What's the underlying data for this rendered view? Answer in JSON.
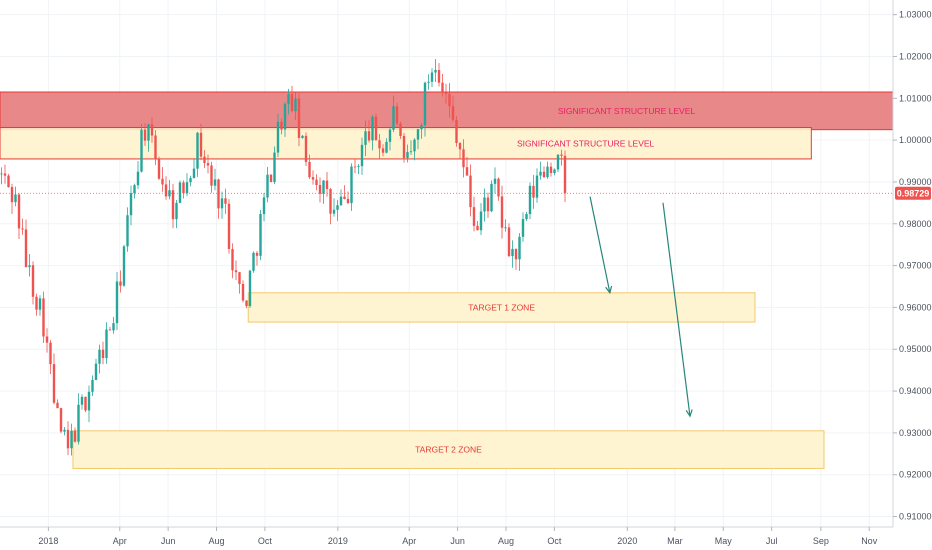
{
  "colors": {
    "up": "#26a69a",
    "down": "#ef5350",
    "resistance_fill": "#e57373",
    "resistance_border": "#e53935",
    "support_fill": "#fff3cd",
    "support_border": "#f2c96b",
    "band_label": "#e91e63",
    "target_label": "#e53935",
    "arrow": "#26867a",
    "price_tag": "#ef5350"
  },
  "chart_data": {
    "type": "candlestick",
    "y_axis": {
      "ticks": [
        "1.03000",
        "1.02000",
        "1.01000",
        "1.00000",
        "0.99000",
        "0.98000",
        "0.97000",
        "0.96000",
        "0.95000",
        "0.94000",
        "0.93000",
        "0.92000",
        "0.91000"
      ],
      "range": [
        0.9075,
        1.0335
      ],
      "position": "right"
    },
    "x_axis": {
      "ticks": [
        "2018",
        "Apr",
        "Jun",
        "Aug",
        "Oct",
        "2019",
        "Apr",
        "Jun",
        "Aug",
        "Oct",
        "2020",
        "Mar",
        "May",
        "Jul",
        "Sep",
        "Nov"
      ],
      "range": [
        "2017-11-01",
        "2020-12-01"
      ]
    },
    "last_price": "0.98729",
    "price_path": [
      {
        "d": "2017-11-01",
        "v": 0.992
      },
      {
        "d": "2017-11-20",
        "v": 0.986
      },
      {
        "d": "2017-12-05",
        "v": 0.97
      },
      {
        "d": "2017-12-25",
        "v": 0.958
      },
      {
        "d": "2018-01-10",
        "v": 0.935
      },
      {
        "d": "2018-01-25",
        "v": 0.925
      },
      {
        "d": "2018-02-10",
        "v": 0.935
      },
      {
        "d": "2018-03-01",
        "v": 0.945
      },
      {
        "d": "2018-03-25",
        "v": 0.958
      },
      {
        "d": "2018-04-15",
        "v": 0.985
      },
      {
        "d": "2018-05-01",
        "v": 1.004
      },
      {
        "d": "2018-05-20",
        "v": 0.993
      },
      {
        "d": "2018-06-10",
        "v": 0.983
      },
      {
        "d": "2018-06-25",
        "v": 0.992
      },
      {
        "d": "2018-07-10",
        "v": 1.0
      },
      {
        "d": "2018-07-25",
        "v": 0.99
      },
      {
        "d": "2018-08-10",
        "v": 0.985
      },
      {
        "d": "2018-08-25",
        "v": 0.968
      },
      {
        "d": "2018-09-05",
        "v": 0.96
      },
      {
        "d": "2018-09-20",
        "v": 0.975
      },
      {
        "d": "2018-10-05",
        "v": 0.99
      },
      {
        "d": "2018-10-20",
        "v": 1.005
      },
      {
        "d": "2018-11-05",
        "v": 1.01
      },
      {
        "d": "2018-11-20",
        "v": 0.995
      },
      {
        "d": "2018-12-10",
        "v": 0.99
      },
      {
        "d": "2018-12-25",
        "v": 0.982
      },
      {
        "d": "2019-01-10",
        "v": 0.985
      },
      {
        "d": "2019-01-25",
        "v": 0.995
      },
      {
        "d": "2019-02-10",
        "v": 1.003
      },
      {
        "d": "2019-02-28",
        "v": 0.998
      },
      {
        "d": "2019-03-15",
        "v": 1.008
      },
      {
        "d": "2019-03-25",
        "v": 0.992
      },
      {
        "d": "2019-04-10",
        "v": 1.0
      },
      {
        "d": "2019-04-25",
        "v": 1.015
      },
      {
        "d": "2019-05-05",
        "v": 1.02
      },
      {
        "d": "2019-05-20",
        "v": 1.008
      },
      {
        "d": "2019-06-01",
        "v": 1.002
      },
      {
        "d": "2019-06-10",
        "v": 0.992
      },
      {
        "d": "2019-06-25",
        "v": 0.978
      },
      {
        "d": "2019-07-05",
        "v": 0.985
      },
      {
        "d": "2019-07-20",
        "v": 0.988
      },
      {
        "d": "2019-08-01",
        "v": 0.975
      },
      {
        "d": "2019-08-15",
        "v": 0.972
      },
      {
        "d": "2019-08-30",
        "v": 0.985
      },
      {
        "d": "2019-09-15",
        "v": 0.993
      },
      {
        "d": "2019-10-01",
        "v": 0.995
      },
      {
        "d": "2019-10-10",
        "v": 0.993
      },
      {
        "d": "2019-10-16",
        "v": 0.9873
      }
    ],
    "zones": [
      {
        "label": "SIGNIFICANT STRUCTURE LEVEL",
        "y_low": 1.0025,
        "y_high": 1.0115,
        "x_start": "2017-11-01",
        "x_end": "2020-12-01",
        "style": "resistance"
      },
      {
        "label": "SIGNIFICANT STRUCTURE LEVEL",
        "y_low": 0.9955,
        "y_high": 1.003,
        "x_start": "2017-11-01",
        "x_end": "2020-08-20",
        "style": "support"
      },
      {
        "label": "TARGET 1 ZONE",
        "y_low": 0.9565,
        "y_high": 0.9635,
        "x_start": "2018-09-10",
        "x_end": "2020-06-10",
        "style": "support"
      },
      {
        "label": "TARGET 2 ZONE",
        "y_low": 0.9215,
        "y_high": 0.9305,
        "x_start": "2018-02-01",
        "x_end": "2020-09-05",
        "style": "support"
      }
    ],
    "arrows": [
      {
        "from": {
          "d": "2019-11-15",
          "v": 0.9865
        },
        "to": {
          "d": "2019-12-10",
          "v": 0.9635
        }
      },
      {
        "from": {
          "d": "2020-02-15",
          "v": 0.985
        },
        "to": {
          "d": "2020-03-20",
          "v": 0.934
        }
      }
    ]
  }
}
